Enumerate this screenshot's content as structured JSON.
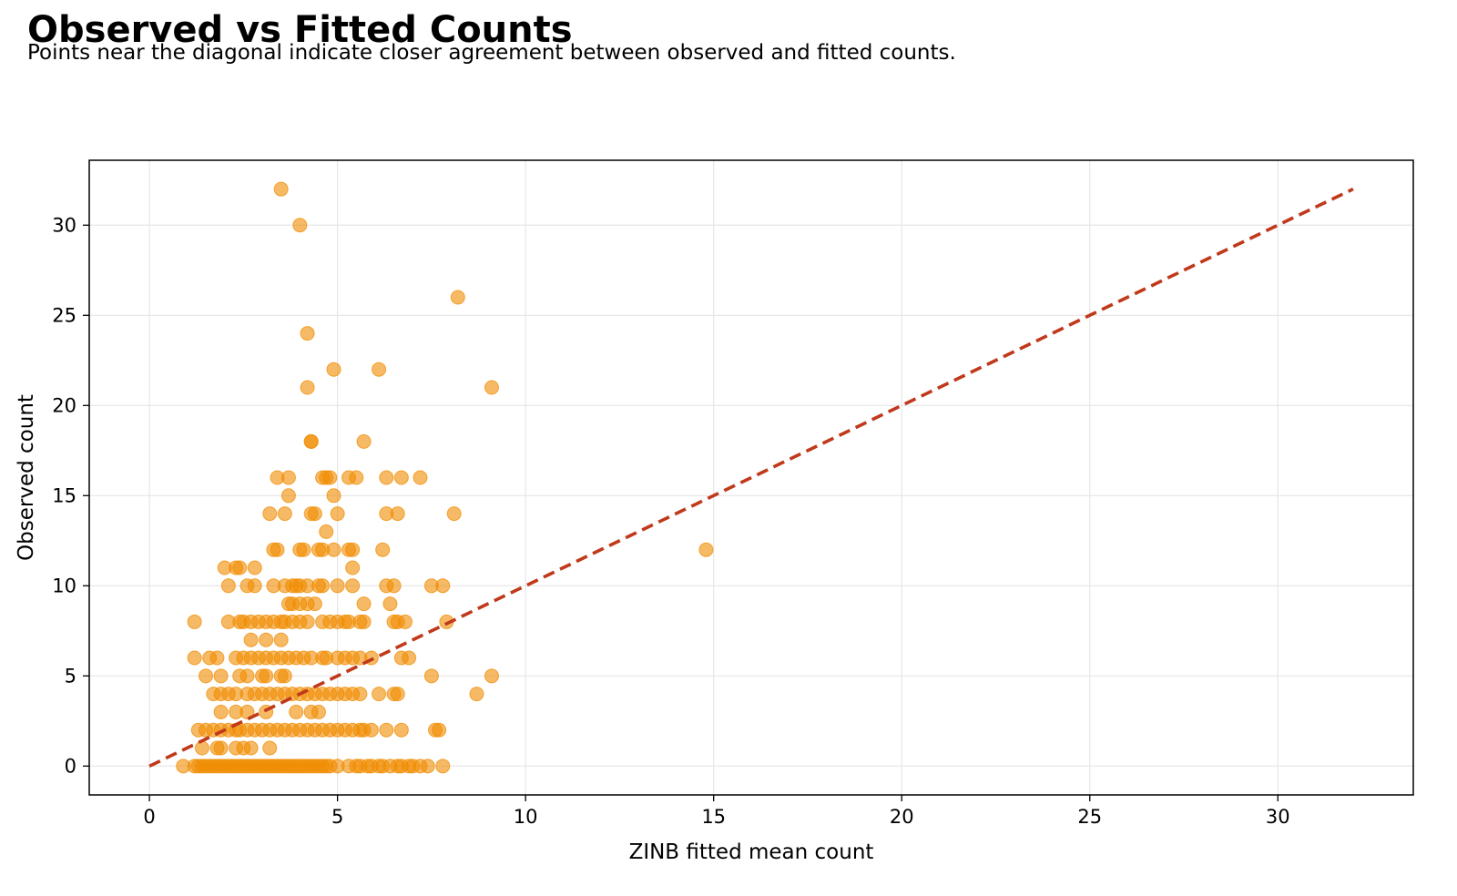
{
  "title": "Observed vs Fitted Counts",
  "subtitle": "Points near the diagonal indicate closer agreement between observed and fitted counts.",
  "chart_data": {
    "type": "scatter",
    "xlabel": "ZINB fitted mean count",
    "ylabel": "Observed count",
    "xlim": [
      -1.6,
      33.6
    ],
    "ylim": [
      -1.6,
      33.6
    ],
    "xticks": [
      0,
      5,
      10,
      15,
      20,
      25,
      30
    ],
    "yticks": [
      0,
      5,
      10,
      15,
      20,
      25,
      30
    ],
    "grid": true,
    "colors": {
      "points": "#f08c00",
      "reference_line": "#c0391b",
      "grid": "#e6e6e6"
    },
    "reference_line": {
      "style": "dashed",
      "x": [
        0,
        32
      ],
      "y": [
        0,
        32
      ]
    },
    "points": [
      [
        0.9,
        0
      ],
      [
        1.2,
        0
      ],
      [
        1.3,
        0
      ],
      [
        1.4,
        0
      ],
      [
        1.5,
        0
      ],
      [
        1.6,
        0
      ],
      [
        1.7,
        0
      ],
      [
        1.8,
        0
      ],
      [
        1.9,
        0
      ],
      [
        2.0,
        0
      ],
      [
        2.1,
        0
      ],
      [
        2.2,
        0
      ],
      [
        2.3,
        0
      ],
      [
        2.4,
        0
      ],
      [
        2.5,
        0
      ],
      [
        2.6,
        0
      ],
      [
        2.7,
        0
      ],
      [
        2.8,
        0
      ],
      [
        2.9,
        0
      ],
      [
        3.0,
        0
      ],
      [
        3.1,
        0
      ],
      [
        3.2,
        0
      ],
      [
        3.3,
        0
      ],
      [
        3.4,
        0
      ],
      [
        3.5,
        0
      ],
      [
        3.6,
        0
      ],
      [
        3.7,
        0
      ],
      [
        3.8,
        0
      ],
      [
        3.9,
        0
      ],
      [
        4.0,
        0
      ],
      [
        4.1,
        0
      ],
      [
        4.2,
        0
      ],
      [
        4.3,
        0
      ],
      [
        4.4,
        0
      ],
      [
        4.5,
        0
      ],
      [
        4.6,
        0
      ],
      [
        4.7,
        0
      ],
      [
        4.8,
        0
      ],
      [
        5.0,
        0
      ],
      [
        5.3,
        0
      ],
      [
        5.5,
        0
      ],
      [
        5.6,
        0
      ],
      [
        5.8,
        0
      ],
      [
        5.9,
        0
      ],
      [
        6.1,
        0
      ],
      [
        6.2,
        0
      ],
      [
        6.4,
        0
      ],
      [
        6.6,
        0
      ],
      [
        6.7,
        0
      ],
      [
        6.9,
        0
      ],
      [
        7.0,
        0
      ],
      [
        7.2,
        0
      ],
      [
        7.4,
        0
      ],
      [
        7.8,
        0
      ],
      [
        1.4,
        1
      ],
      [
        1.8,
        1
      ],
      [
        1.9,
        1
      ],
      [
        2.3,
        1
      ],
      [
        2.5,
        1
      ],
      [
        2.7,
        1
      ],
      [
        3.2,
        1
      ],
      [
        1.3,
        2
      ],
      [
        1.5,
        2
      ],
      [
        1.7,
        2
      ],
      [
        1.9,
        2
      ],
      [
        2.1,
        2
      ],
      [
        2.3,
        2
      ],
      [
        2.4,
        2
      ],
      [
        2.6,
        2
      ],
      [
        2.8,
        2
      ],
      [
        3.0,
        2
      ],
      [
        3.2,
        2
      ],
      [
        3.4,
        2
      ],
      [
        3.6,
        2
      ],
      [
        3.8,
        2
      ],
      [
        4.0,
        2
      ],
      [
        4.2,
        2
      ],
      [
        4.4,
        2
      ],
      [
        4.6,
        2
      ],
      [
        4.8,
        2
      ],
      [
        5.0,
        2
      ],
      [
        5.2,
        2
      ],
      [
        5.4,
        2
      ],
      [
        5.6,
        2
      ],
      [
        5.7,
        2
      ],
      [
        5.9,
        2
      ],
      [
        6.3,
        2
      ],
      [
        6.7,
        2
      ],
      [
        7.6,
        2
      ],
      [
        7.7,
        2
      ],
      [
        1.9,
        3
      ],
      [
        2.3,
        3
      ],
      [
        2.6,
        3
      ],
      [
        3.1,
        3
      ],
      [
        3.9,
        3
      ],
      [
        4.3,
        3
      ],
      [
        4.5,
        3
      ],
      [
        1.7,
        4
      ],
      [
        1.9,
        4
      ],
      [
        2.1,
        4
      ],
      [
        2.3,
        4
      ],
      [
        2.6,
        4
      ],
      [
        2.8,
        4
      ],
      [
        3.0,
        4
      ],
      [
        3.2,
        4
      ],
      [
        3.4,
        4
      ],
      [
        3.6,
        4
      ],
      [
        3.8,
        4
      ],
      [
        4.0,
        4
      ],
      [
        4.2,
        4
      ],
      [
        4.4,
        4
      ],
      [
        4.6,
        4
      ],
      [
        4.8,
        4
      ],
      [
        5.0,
        4
      ],
      [
        5.2,
        4
      ],
      [
        5.4,
        4
      ],
      [
        5.6,
        4
      ],
      [
        6.1,
        4
      ],
      [
        6.5,
        4
      ],
      [
        6.6,
        4
      ],
      [
        8.7,
        4
      ],
      [
        1.5,
        5
      ],
      [
        1.9,
        5
      ],
      [
        2.4,
        5
      ],
      [
        2.6,
        5
      ],
      [
        3.0,
        5
      ],
      [
        3.1,
        5
      ],
      [
        3.5,
        5
      ],
      [
        3.6,
        5
      ],
      [
        7.5,
        5
      ],
      [
        9.1,
        5
      ],
      [
        1.2,
        6
      ],
      [
        1.6,
        6
      ],
      [
        1.8,
        6
      ],
      [
        2.3,
        6
      ],
      [
        2.5,
        6
      ],
      [
        2.7,
        6
      ],
      [
        2.9,
        6
      ],
      [
        3.1,
        6
      ],
      [
        3.3,
        6
      ],
      [
        3.5,
        6
      ],
      [
        3.7,
        6
      ],
      [
        3.9,
        6
      ],
      [
        4.1,
        6
      ],
      [
        4.3,
        6
      ],
      [
        4.6,
        6
      ],
      [
        4.7,
        6
      ],
      [
        5.0,
        6
      ],
      [
        5.2,
        6
      ],
      [
        5.4,
        6
      ],
      [
        5.6,
        6
      ],
      [
        5.9,
        6
      ],
      [
        6.7,
        6
      ],
      [
        6.9,
        6
      ],
      [
        2.7,
        7
      ],
      [
        3.1,
        7
      ],
      [
        3.5,
        7
      ],
      [
        1.2,
        8
      ],
      [
        2.1,
        8
      ],
      [
        2.4,
        8
      ],
      [
        2.5,
        8
      ],
      [
        2.7,
        8
      ],
      [
        2.9,
        8
      ],
      [
        3.1,
        8
      ],
      [
        3.3,
        8
      ],
      [
        3.5,
        8
      ],
      [
        3.6,
        8
      ],
      [
        3.8,
        8
      ],
      [
        4.0,
        8
      ],
      [
        4.2,
        8
      ],
      [
        4.6,
        8
      ],
      [
        4.8,
        8
      ],
      [
        5.0,
        8
      ],
      [
        5.2,
        8
      ],
      [
        5.3,
        8
      ],
      [
        5.6,
        8
      ],
      [
        5.7,
        8
      ],
      [
        6.5,
        8
      ],
      [
        6.6,
        8
      ],
      [
        6.8,
        8
      ],
      [
        7.9,
        8
      ],
      [
        3.7,
        9
      ],
      [
        3.8,
        9
      ],
      [
        4.0,
        9
      ],
      [
        4.2,
        9
      ],
      [
        4.4,
        9
      ],
      [
        5.7,
        9
      ],
      [
        6.4,
        9
      ],
      [
        2.1,
        10
      ],
      [
        2.6,
        10
      ],
      [
        2.8,
        10
      ],
      [
        3.3,
        10
      ],
      [
        3.6,
        10
      ],
      [
        3.8,
        10
      ],
      [
        3.9,
        10
      ],
      [
        4.0,
        10
      ],
      [
        4.2,
        10
      ],
      [
        4.5,
        10
      ],
      [
        4.6,
        10
      ],
      [
        5.0,
        10
      ],
      [
        5.4,
        10
      ],
      [
        6.3,
        10
      ],
      [
        6.5,
        10
      ],
      [
        7.5,
        10
      ],
      [
        7.8,
        10
      ],
      [
        2.0,
        11
      ],
      [
        2.3,
        11
      ],
      [
        2.4,
        11
      ],
      [
        2.8,
        11
      ],
      [
        5.4,
        11
      ],
      [
        3.3,
        12
      ],
      [
        3.4,
        12
      ],
      [
        4.0,
        12
      ],
      [
        4.1,
        12
      ],
      [
        4.5,
        12
      ],
      [
        4.6,
        12
      ],
      [
        4.9,
        12
      ],
      [
        5.3,
        12
      ],
      [
        5.4,
        12
      ],
      [
        6.2,
        12
      ],
      [
        14.8,
        12
      ],
      [
        4.7,
        13
      ],
      [
        3.2,
        14
      ],
      [
        3.6,
        14
      ],
      [
        4.3,
        14
      ],
      [
        4.4,
        14
      ],
      [
        5.0,
        14
      ],
      [
        6.3,
        14
      ],
      [
        6.6,
        14
      ],
      [
        8.1,
        14
      ],
      [
        3.7,
        15
      ],
      [
        4.9,
        15
      ],
      [
        3.4,
        16
      ],
      [
        3.7,
        16
      ],
      [
        4.6,
        16
      ],
      [
        4.7,
        16
      ],
      [
        4.8,
        16
      ],
      [
        5.3,
        16
      ],
      [
        5.5,
        16
      ],
      [
        6.3,
        16
      ],
      [
        6.7,
        16
      ],
      [
        7.2,
        16
      ],
      [
        4.3,
        18
      ],
      [
        4.3,
        18
      ],
      [
        5.7,
        18
      ],
      [
        4.2,
        21
      ],
      [
        9.1,
        21
      ],
      [
        4.9,
        22
      ],
      [
        6.1,
        22
      ],
      [
        4.2,
        24
      ],
      [
        8.2,
        26
      ],
      [
        4.0,
        30
      ],
      [
        3.5,
        32
      ]
    ]
  }
}
